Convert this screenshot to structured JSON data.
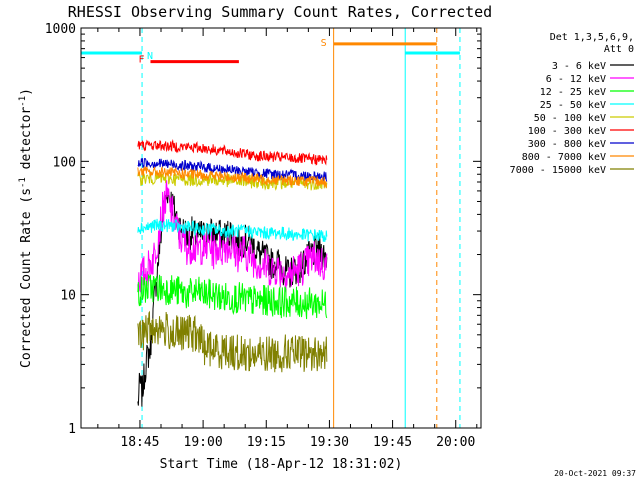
{
  "chart_data": {
    "type": "line",
    "title": "RHESSI Observing Summary Count Rates, Corrected",
    "xlabel": "Start Time (18-Apr-12 18:31:02)",
    "ylabel": "Corrected Count Rate (s⁻¹ detector⁻¹)",
    "ylabel_parts": [
      "Corrected Count Rate (s",
      "-1",
      " detector",
      "-1",
      ")"
    ],
    "y_scale": "log",
    "ylim": [
      1,
      1000
    ],
    "y_ticks": [
      1,
      10,
      100,
      1000
    ],
    "y_tick_labels": [
      "1",
      "10",
      "100",
      "1000"
    ],
    "xlim_min": [
      31,
      126
    ],
    "x_ticks_min": [
      45,
      60,
      75,
      90,
      105,
      120
    ],
    "x_tick_labels": [
      "18:45",
      "19:00",
      "19:15",
      "19:30",
      "19:45",
      "20:00"
    ],
    "data_window_min": [
      44.5,
      90
    ],
    "legend_position": "top-right",
    "legend_header": [
      "Det 1,3,5,6,9,",
      "Att 0"
    ],
    "series": [
      {
        "name": "3 - 6 keV",
        "color": "#000000",
        "points": [
          [
            44.5,
            1.5
          ],
          [
            45.0,
            2.2
          ],
          [
            45.5,
            1.8
          ],
          [
            46.5,
            3.2
          ],
          [
            47.5,
            4.0
          ],
          [
            48.5,
            10.0
          ],
          [
            49.5,
            20.0
          ],
          [
            50.5,
            40.0
          ],
          [
            51.5,
            62.0
          ],
          [
            52.5,
            50.0
          ],
          [
            53.5,
            40.0
          ],
          [
            54.5,
            32.0
          ],
          [
            55.5,
            30.0
          ],
          [
            56.5,
            27.0
          ],
          [
            57.5,
            30.0
          ],
          [
            58.5,
            26.0
          ],
          [
            59.5,
            29.0
          ],
          [
            60.5,
            27.0
          ],
          [
            61.5,
            30.0
          ],
          [
            62.5,
            28.0
          ],
          [
            63.5,
            29.0
          ],
          [
            64.5,
            27.0
          ],
          [
            65.5,
            28.0
          ],
          [
            66.5,
            30.0
          ],
          [
            67.5,
            26.0
          ],
          [
            68.5,
            24.0
          ],
          [
            69.5,
            25.0
          ],
          [
            70.5,
            26.0
          ],
          [
            71.5,
            24.0
          ],
          [
            72.5,
            22.0
          ],
          [
            73.5,
            20.0
          ],
          [
            74.5,
            19.0
          ],
          [
            75.5,
            18.0
          ],
          [
            76.5,
            17.0
          ],
          [
            77.5,
            18.0
          ],
          [
            78.5,
            16.0
          ],
          [
            79.5,
            15.0
          ],
          [
            80.5,
            14.0
          ],
          [
            81.5,
            16.0
          ],
          [
            82.5,
            15.0
          ],
          [
            83.5,
            17.0
          ],
          [
            84.5,
            18.0
          ],
          [
            85.5,
            20.0
          ],
          [
            86.5,
            21.0
          ],
          [
            87.5,
            22.0
          ],
          [
            88.5,
            20.0
          ],
          [
            89.5,
            19.0
          ]
        ]
      },
      {
        "name": "6 - 12 keV",
        "color": "#ff00ff",
        "points": [
          [
            44.5,
            13.0
          ],
          [
            45.5,
            14.0
          ],
          [
            46.5,
            15.0
          ],
          [
            47.5,
            17.0
          ],
          [
            48.5,
            20.0
          ],
          [
            49.5,
            30.0
          ],
          [
            50.5,
            45.0
          ],
          [
            51.5,
            55.0
          ],
          [
            52.5,
            42.0
          ],
          [
            53.5,
            33.0
          ],
          [
            54.5,
            27.0
          ],
          [
            55.5,
            25.0
          ],
          [
            56.5,
            22.0
          ],
          [
            57.5,
            24.0
          ],
          [
            58.5,
            21.0
          ],
          [
            59.5,
            23.0
          ],
          [
            60.5,
            22.0
          ],
          [
            61.5,
            24.0
          ],
          [
            62.5,
            21.0
          ],
          [
            63.5,
            23.0
          ],
          [
            64.5,
            22.0
          ],
          [
            65.5,
            24.0
          ],
          [
            66.5,
            23.0
          ],
          [
            67.5,
            21.0
          ],
          [
            68.5,
            20.0
          ],
          [
            69.5,
            21.0
          ],
          [
            70.5,
            20.0
          ],
          [
            71.5,
            19.0
          ],
          [
            72.5,
            18.0
          ],
          [
            73.5,
            17.0
          ],
          [
            74.5,
            16.5
          ],
          [
            75.5,
            16.0
          ],
          [
            76.5,
            15.5
          ],
          [
            77.5,
            16.0
          ],
          [
            78.5,
            15.0
          ],
          [
            79.5,
            14.5
          ],
          [
            80.5,
            14.0
          ],
          [
            81.5,
            15.0
          ],
          [
            82.5,
            15.5
          ],
          [
            83.5,
            16.0
          ],
          [
            84.5,
            17.0
          ],
          [
            85.5,
            18.0
          ],
          [
            86.5,
            19.0
          ],
          [
            87.5,
            18.0
          ],
          [
            88.5,
            17.0
          ],
          [
            89.5,
            16.0
          ]
        ]
      },
      {
        "name": "12 - 25 keV",
        "color": "#00ff00",
        "points": [
          [
            44.5,
            10.5
          ],
          [
            46.5,
            11.0
          ],
          [
            48.5,
            11.5
          ],
          [
            50.5,
            11.0
          ],
          [
            52.5,
            11.0
          ],
          [
            54.5,
            10.5
          ],
          [
            56.5,
            10.0
          ],
          [
            58.5,
            10.5
          ],
          [
            60.5,
            10.0
          ],
          [
            62.5,
            10.0
          ],
          [
            64.5,
            9.5
          ],
          [
            66.5,
            9.5
          ],
          [
            68.5,
            9.5
          ],
          [
            70.5,
            9.0
          ],
          [
            72.5,
            9.0
          ],
          [
            74.5,
            9.0
          ],
          [
            76.5,
            9.0
          ],
          [
            78.5,
            8.8
          ],
          [
            80.5,
            8.8
          ],
          [
            82.5,
            8.7
          ],
          [
            84.5,
            8.6
          ],
          [
            86.5,
            8.6
          ],
          [
            88.5,
            8.5
          ],
          [
            89.5,
            8.5
          ]
        ]
      },
      {
        "name": "25 - 50 keV",
        "color": "#00ffff",
        "points": [
          [
            44.5,
            32.0
          ],
          [
            46.5,
            32.0
          ],
          [
            48.5,
            33.0
          ],
          [
            50.5,
            33.0
          ],
          [
            52.5,
            33.0
          ],
          [
            54.5,
            32.0
          ],
          [
            56.5,
            32.0
          ],
          [
            58.5,
            31.0
          ],
          [
            60.5,
            31.0
          ],
          [
            62.5,
            31.0
          ],
          [
            64.5,
            30.0
          ],
          [
            66.5,
            30.0
          ],
          [
            68.5,
            30.0
          ],
          [
            70.5,
            30.0
          ],
          [
            72.5,
            29.5
          ],
          [
            74.5,
            29.0
          ],
          [
            76.5,
            29.0
          ],
          [
            78.5,
            29.0
          ],
          [
            80.5,
            28.5
          ],
          [
            82.5,
            28.0
          ],
          [
            84.5,
            28.0
          ],
          [
            86.5,
            28.0
          ],
          [
            88.5,
            27.5
          ],
          [
            89.5,
            27.5
          ]
        ]
      },
      {
        "name": "50 - 100 keV",
        "color": "#cccc00",
        "points": [
          [
            44.5,
            74.0
          ],
          [
            48.5,
            75.0
          ],
          [
            52.5,
            74.0
          ],
          [
            56.5,
            73.0
          ],
          [
            60.5,
            73.0
          ],
          [
            64.5,
            72.0
          ],
          [
            68.5,
            71.0
          ],
          [
            72.5,
            70.0
          ],
          [
            76.5,
            69.0
          ],
          [
            80.5,
            69.0
          ],
          [
            84.5,
            68.0
          ],
          [
            89.5,
            68.0
          ]
        ]
      },
      {
        "name": "100 - 300 keV",
        "color": "#ff0000",
        "points": [
          [
            44.5,
            132.0
          ],
          [
            48.5,
            132.0
          ],
          [
            52.5,
            130.0
          ],
          [
            56.5,
            128.0
          ],
          [
            60.5,
            125.0
          ],
          [
            64.5,
            120.0
          ],
          [
            68.5,
            115.0
          ],
          [
            72.5,
            110.0
          ],
          [
            76.5,
            108.0
          ],
          [
            80.5,
            106.0
          ],
          [
            84.5,
            104.0
          ],
          [
            89.5,
            102.0
          ]
        ]
      },
      {
        "name": "300 - 800 keV",
        "color": "#0000cc",
        "points": [
          [
            44.5,
            98.0
          ],
          [
            48.5,
            97.0
          ],
          [
            52.5,
            95.0
          ],
          [
            56.5,
            92.0
          ],
          [
            60.5,
            90.0
          ],
          [
            64.5,
            87.0
          ],
          [
            68.5,
            85.0
          ],
          [
            72.5,
            82.0
          ],
          [
            76.5,
            80.0
          ],
          [
            80.5,
            79.0
          ],
          [
            84.5,
            78.0
          ],
          [
            89.5,
            77.0
          ]
        ]
      },
      {
        "name": "800 - 7000 keV",
        "color": "#ff8800",
        "points": [
          [
            44.5,
            84.0
          ],
          [
            48.5,
            83.0
          ],
          [
            52.5,
            82.0
          ],
          [
            56.5,
            80.0
          ],
          [
            60.5,
            79.0
          ],
          [
            64.5,
            77.0
          ],
          [
            68.5,
            76.0
          ],
          [
            72.5,
            74.0
          ],
          [
            76.5,
            73.0
          ],
          [
            80.5,
            72.0
          ],
          [
            84.5,
            71.0
          ],
          [
            89.5,
            70.0
          ]
        ]
      },
      {
        "name": "7000 - 15000 keV",
        "color": "#808000",
        "points": [
          [
            44.5,
            4.5
          ],
          [
            46.5,
            5.5
          ],
          [
            48.5,
            5.7
          ],
          [
            50.5,
            5.5
          ],
          [
            52.5,
            5.2
          ],
          [
            54.5,
            5.0
          ],
          [
            56.5,
            5.2
          ],
          [
            58.5,
            5.0
          ],
          [
            60.5,
            4.0
          ],
          [
            62.5,
            3.9
          ],
          [
            64.5,
            3.8
          ],
          [
            66.5,
            3.8
          ],
          [
            68.5,
            3.6
          ],
          [
            70.5,
            3.6
          ],
          [
            72.5,
            3.5
          ],
          [
            74.5,
            3.6
          ],
          [
            76.5,
            3.6
          ],
          [
            78.5,
            3.6
          ],
          [
            80.5,
            3.7
          ],
          [
            82.5,
            3.6
          ],
          [
            84.5,
            3.6
          ],
          [
            86.5,
            3.6
          ],
          [
            88.5,
            3.6
          ],
          [
            89.5,
            3.6
          ]
        ]
      }
    ],
    "annotations": {
      "night_bars": [
        {
          "label": "N",
          "color": "#00ffff",
          "segments": [
            [
              31,
              45.5
            ],
            [
              108,
              121
            ]
          ],
          "level": 650
        },
        {
          "label": "S",
          "color": "#ff8800",
          "segments": [
            [
              91,
              115.5
            ]
          ],
          "level": 760
        }
      ],
      "flare_bar": {
        "label": "F",
        "color": "#ff0000",
        "start": 47.5,
        "end": 68.5,
        "level": 560
      },
      "markers": [
        {
          "x": 31,
          "color": "#00ffff",
          "style": "solid"
        },
        {
          "x": 45.5,
          "color": "#00ffff",
          "style": "dashed"
        },
        {
          "x": 91,
          "color": "#ff8800",
          "style": "solid"
        },
        {
          "x": 108,
          "color": "#00ffff",
          "style": "solid"
        },
        {
          "x": 115.5,
          "color": "#ff8800",
          "style": "dashed"
        },
        {
          "x": 121,
          "color": "#00ffff",
          "style": "dashed"
        }
      ]
    }
  },
  "footer_timestamp": "20-Oct-2021 09:37"
}
